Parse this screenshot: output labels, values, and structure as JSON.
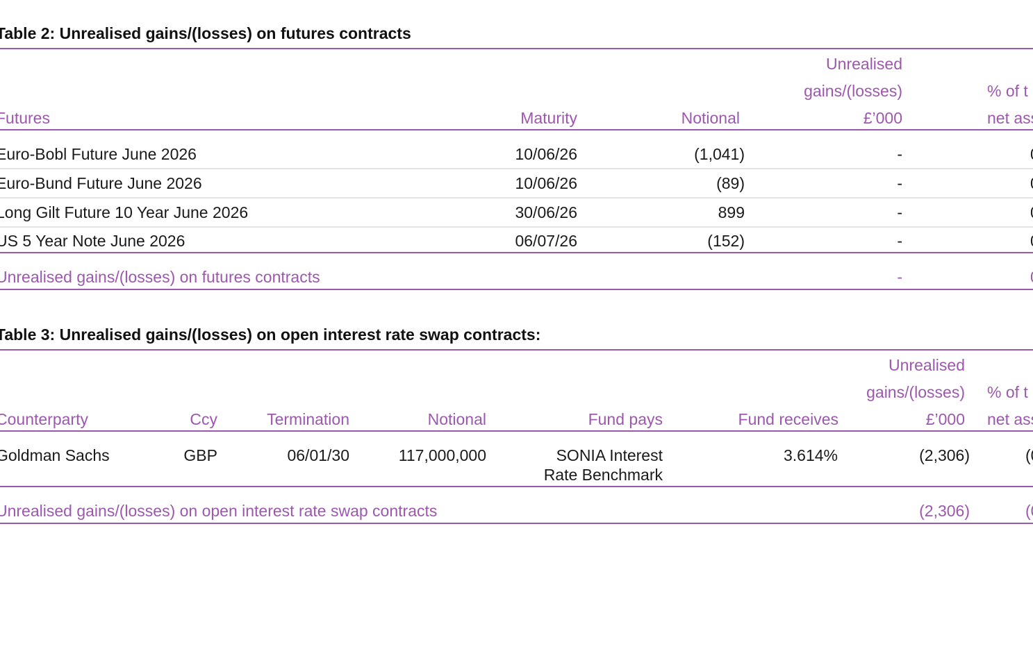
{
  "table_2": {
    "title": "Table 2: Unrealised gains/(losses) on futures contracts",
    "columns": [
      [
        "Futures"
      ],
      [
        "Maturity"
      ],
      [
        "Notional"
      ],
      [
        "Unrealised",
        "gains/(losses)",
        "£’000"
      ],
      [
        "% of t",
        "net ass"
      ]
    ],
    "rows": [
      [
        "Euro-Bobl Future June 2026",
        "10/06/26",
        "(1,041)",
        "-",
        "0"
      ],
      [
        "Euro-Bund Future June 2026",
        "10/06/26",
        "(89)",
        "-",
        "0"
      ],
      [
        "Long Gilt Future 10 Year June 2026",
        "30/06/26",
        "899",
        "-",
        "0"
      ],
      [
        "US 5 Year Note June 2026",
        "06/07/26",
        "(152)",
        "-",
        "0"
      ]
    ],
    "total": {
      "label": "Unrealised gains/(losses) on futures contracts",
      "values": [
        "-",
        "0"
      ]
    }
  },
  "table_3": {
    "title": "Table 3: Unrealised gains/(losses) on open interest rate swap contracts:",
    "columns": [
      [
        "Counterparty"
      ],
      [
        "Ccy"
      ],
      [
        "Termination"
      ],
      [
        "Notional"
      ],
      [
        "Fund pays"
      ],
      [
        "Fund receives"
      ],
      [
        "Unrealised",
        "gains/(losses)",
        "£’000"
      ],
      [
        "% of t",
        "net ass"
      ]
    ],
    "rows": [
      [
        [
          "Goldman Sachs"
        ],
        [
          "GBP"
        ],
        [
          "06/01/30"
        ],
        [
          "117,000,000"
        ],
        [
          "SONIA Interest",
          "Rate Benchmark"
        ],
        [
          "3.614%"
        ],
        [
          "(2,306)"
        ],
        [
          "(0"
        ]
      ]
    ],
    "total": {
      "label": "Unrealised gains/(losses) on open interest rate swap contracts",
      "values": [
        "(2,306)",
        "(0"
      ]
    }
  }
}
